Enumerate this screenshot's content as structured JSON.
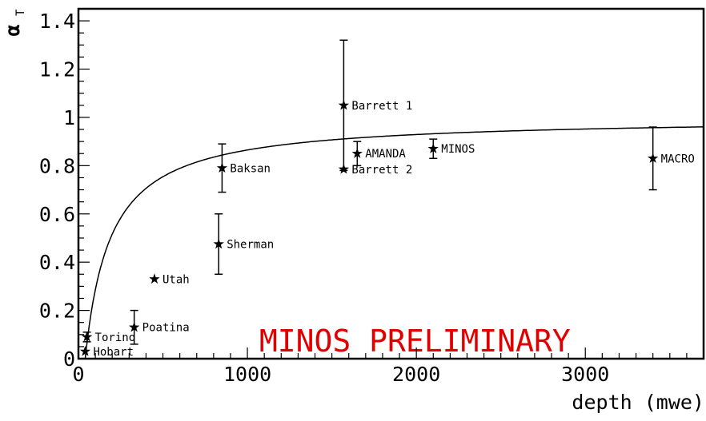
{
  "chart_data": {
    "type": "scatter",
    "xlabel": "depth (mwe)",
    "ylabel": "α",
    "ylabel_subscript": "T",
    "xlim": [
      0,
      3700
    ],
    "ylim": [
      0,
      1.45
    ],
    "x_ticks": [
      0,
      1000,
      2000,
      3000
    ],
    "x_tick_labels": [
      "0",
      "1000",
      "2000",
      "3000"
    ],
    "y_ticks": [
      0,
      0.2,
      0.4,
      0.6,
      0.8,
      1.0,
      1.2,
      1.4
    ],
    "y_tick_labels": [
      "0",
      "0.2",
      "0.4",
      "0.6",
      "0.8",
      "1",
      "1.2",
      "1.4"
    ],
    "grid": false,
    "watermark": "MINOS PRELIMINARY",
    "watermark_color": "#e00000",
    "points": [
      {
        "label": "Hobart",
        "x": 40,
        "y": 0.03,
        "err": 0.0
      },
      {
        "label": "Torino",
        "x": 50,
        "y": 0.09,
        "err": 0.02
      },
      {
        "label": "Poatina",
        "x": 330,
        "y": 0.13,
        "err": 0.07
      },
      {
        "label": "Utah",
        "x": 450,
        "y": 0.33,
        "err": 0.0
      },
      {
        "label": "Sherman",
        "x": 830,
        "y": 0.475,
        "err": 0.125
      },
      {
        "label": "Baksan",
        "x": 850,
        "y": 0.79,
        "err": 0.1
      },
      {
        "label": "Barrett 1",
        "x": 1570,
        "y": 1.05,
        "err": 0.27
      },
      {
        "label": "Barrett 2",
        "x": 1570,
        "y": 0.785,
        "err": 0.0
      },
      {
        "label": "AMANDA",
        "x": 1650,
        "y": 0.85,
        "err": 0.05
      },
      {
        "label": "MINOS",
        "x": 2100,
        "y": 0.87,
        "err": 0.04
      },
      {
        "label": "MACRO",
        "x": 3400,
        "y": 0.83,
        "err": 0.13
      }
    ],
    "fit_curve": {
      "x0": 40,
      "ymax": 1.0,
      "scale": 150
    }
  }
}
